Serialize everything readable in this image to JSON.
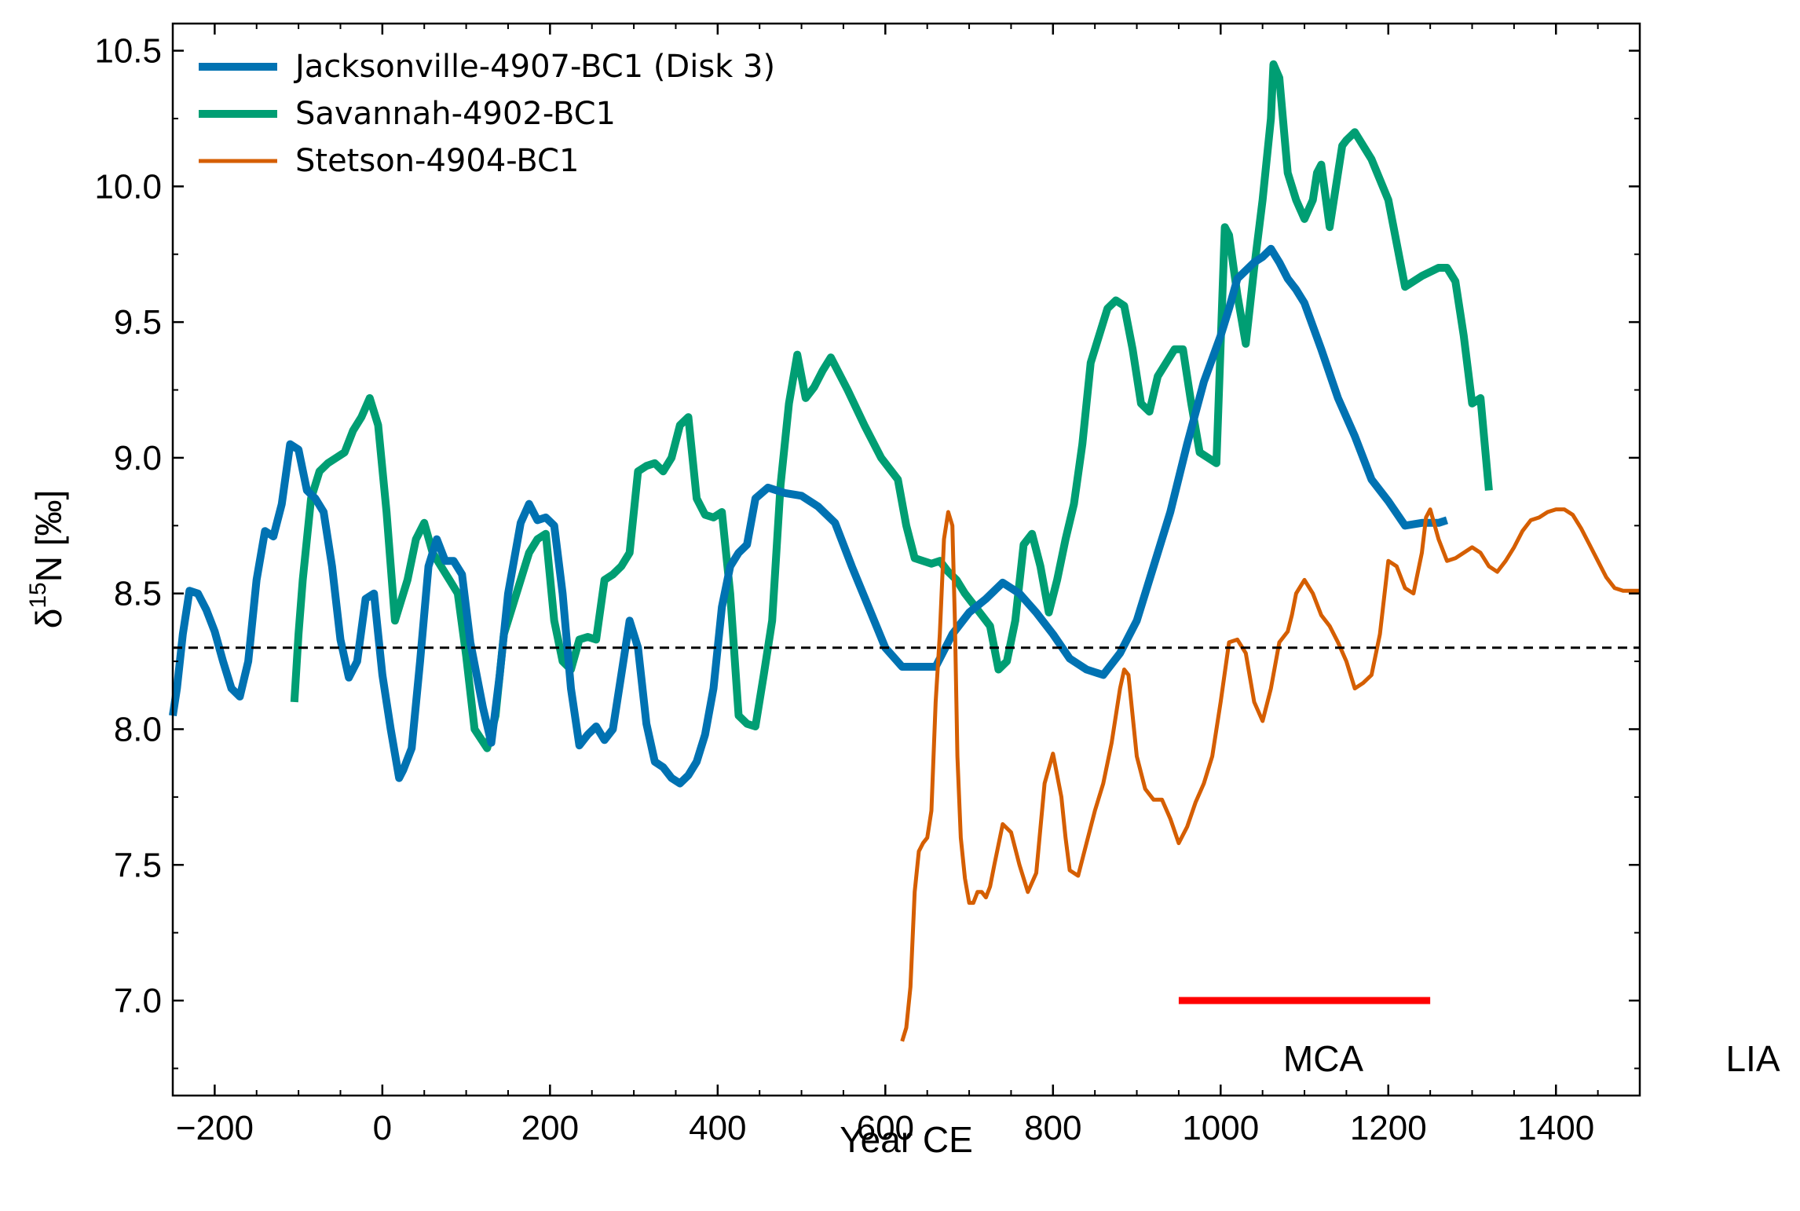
{
  "chart_data": {
    "type": "line",
    "title": "",
    "xlabel": "Year CE",
    "ylabel_main": "δ",
    "ylabel_sup": "15",
    "ylabel_tail": "N [‰]",
    "xlim": [
      -250,
      1500
    ],
    "ylim": [
      6.65,
      10.6
    ],
    "x_ticks": [
      -200,
      0,
      200,
      400,
      600,
      800,
      1000,
      1200,
      1400
    ],
    "x_tick_labels": [
      "−200",
      "0",
      "200",
      "400",
      "600",
      "800",
      "1000",
      "1200",
      "1400"
    ],
    "y_ticks": [
      7.0,
      7.5,
      8.0,
      8.5,
      9.0,
      9.5,
      10.0,
      10.5
    ],
    "y_tick_labels": [
      "7.0",
      "7.5",
      "8.0",
      "8.5",
      "9.0",
      "9.5",
      "10.0",
      "10.5"
    ],
    "grid": false,
    "legend_position": "top-left",
    "reference_line": {
      "y": 8.3,
      "style": "dashed",
      "color": "#000000"
    },
    "series": [
      {
        "name": "Jacksonville-4907-BC1 (Disk 3)",
        "color": "#0072b2",
        "x": [
          -250,
          -245,
          -238,
          -230,
          -220,
          -210,
          -200,
          -190,
          -180,
          -170,
          -160,
          -150,
          -140,
          -130,
          -120,
          -110,
          -100,
          -90,
          -80,
          -70,
          -60,
          -50,
          -40,
          -30,
          -20,
          -10,
          0,
          10,
          20,
          25,
          35,
          45,
          55,
          65,
          75,
          85,
          95,
          105,
          120,
          130,
          140,
          150,
          165,
          175,
          185,
          195,
          205,
          215,
          225,
          235,
          245,
          255,
          265,
          275,
          285,
          295,
          305,
          315,
          325,
          335,
          345,
          355,
          365,
          375,
          385,
          395,
          405,
          415,
          425,
          435,
          445,
          460,
          480,
          500,
          520,
          540,
          560,
          580,
          600,
          620,
          640,
          660,
          680,
          700,
          720,
          740,
          760,
          780,
          800,
          820,
          840,
          860,
          880,
          900,
          920,
          940,
          960,
          980,
          1000,
          1010,
          1020,
          1030,
          1040,
          1050,
          1060,
          1070,
          1080,
          1090,
          1100,
          1120,
          1140,
          1160,
          1180,
          1200,
          1220,
          1240,
          1260,
          1270
        ],
        "values": [
          8.05,
          8.15,
          8.35,
          8.51,
          8.5,
          8.44,
          8.36,
          8.25,
          8.15,
          8.12,
          8.25,
          8.55,
          8.73,
          8.71,
          8.83,
          9.05,
          9.03,
          8.88,
          8.85,
          8.8,
          8.6,
          8.33,
          8.19,
          8.25,
          8.48,
          8.5,
          8.2,
          8.0,
          7.82,
          7.85,
          7.93,
          8.25,
          8.6,
          8.7,
          8.62,
          8.62,
          8.57,
          8.32,
          8.08,
          7.95,
          8.2,
          8.5,
          8.76,
          8.83,
          8.77,
          8.78,
          8.75,
          8.5,
          8.15,
          7.94,
          7.98,
          8.01,
          7.96,
          8.0,
          8.2,
          8.4,
          8.3,
          8.02,
          7.88,
          7.86,
          7.82,
          7.8,
          7.83,
          7.88,
          7.98,
          8.15,
          8.45,
          8.6,
          8.65,
          8.68,
          8.85,
          8.89,
          8.87,
          8.86,
          8.82,
          8.76,
          8.6,
          8.45,
          8.3,
          8.23,
          8.23,
          8.23,
          8.35,
          8.43,
          8.48,
          8.54,
          8.5,
          8.43,
          8.35,
          8.26,
          8.22,
          8.2,
          8.28,
          8.4,
          8.6,
          8.8,
          9.05,
          9.28,
          9.45,
          9.55,
          9.66,
          9.69,
          9.72,
          9.74,
          9.77,
          9.72,
          9.66,
          9.62,
          9.57,
          9.4,
          9.22,
          9.08,
          8.92,
          8.84,
          8.75,
          8.76,
          8.76,
          8.77
        ]
      },
      {
        "name": "Savannah-4902-BC1",
        "color": "#009e73",
        "x": [
          -105,
          -100,
          -95,
          -85,
          -75,
          -65,
          -55,
          -45,
          -35,
          -25,
          -15,
          -5,
          5,
          15,
          30,
          40,
          50,
          60,
          70,
          80,
          90,
          100,
          110,
          125,
          135,
          145,
          155,
          165,
          175,
          185,
          195,
          205,
          215,
          225,
          235,
          245,
          255,
          265,
          275,
          285,
          295,
          305,
          315,
          325,
          335,
          345,
          355,
          365,
          375,
          385,
          395,
          405,
          415,
          425,
          435,
          445,
          455,
          465,
          475,
          485,
          495,
          505,
          515,
          525,
          535,
          555,
          575,
          595,
          615,
          625,
          635,
          645,
          655,
          665,
          675,
          685,
          695,
          705,
          715,
          725,
          735,
          745,
          755,
          765,
          775,
          785,
          795,
          805,
          815,
          825,
          835,
          845,
          855,
          865,
          875,
          885,
          895,
          905,
          915,
          925,
          935,
          945,
          955,
          965,
          975,
          985,
          995,
          1005,
          1010,
          1020,
          1030,
          1040,
          1050,
          1060,
          1063,
          1070,
          1080,
          1090,
          1100,
          1110,
          1115,
          1120,
          1130,
          1145,
          1150,
          1160,
          1180,
          1200,
          1220,
          1240,
          1260,
          1270,
          1280,
          1290,
          1300,
          1310,
          1320
        ],
        "values": [
          8.1,
          8.35,
          8.55,
          8.85,
          8.95,
          8.98,
          9.0,
          9.02,
          9.1,
          9.15,
          9.22,
          9.12,
          8.8,
          8.4,
          8.55,
          8.7,
          8.76,
          8.65,
          8.6,
          8.55,
          8.5,
          8.27,
          8.0,
          7.93,
          8.05,
          8.35,
          8.45,
          8.55,
          8.65,
          8.7,
          8.72,
          8.4,
          8.25,
          8.22,
          8.33,
          8.34,
          8.33,
          8.55,
          8.57,
          8.6,
          8.65,
          8.95,
          8.97,
          8.98,
          8.95,
          9.0,
          9.12,
          9.15,
          8.85,
          8.79,
          8.78,
          8.8,
          8.5,
          8.05,
          8.02,
          8.01,
          8.2,
          8.4,
          8.9,
          9.2,
          9.38,
          9.22,
          9.26,
          9.32,
          9.37,
          9.25,
          9.12,
          9.0,
          8.92,
          8.75,
          8.63,
          8.62,
          8.61,
          8.62,
          8.58,
          8.55,
          8.5,
          8.46,
          8.42,
          8.38,
          8.22,
          8.25,
          8.4,
          8.68,
          8.72,
          8.6,
          8.43,
          8.55,
          8.7,
          8.83,
          9.05,
          9.35,
          9.45,
          9.55,
          9.58,
          9.56,
          9.4,
          9.2,
          9.17,
          9.3,
          9.35,
          9.4,
          9.4,
          9.2,
          9.02,
          9.0,
          8.98,
          9.85,
          9.82,
          9.6,
          9.42,
          9.7,
          9.95,
          10.25,
          10.45,
          10.4,
          10.05,
          9.95,
          9.88,
          9.95,
          10.05,
          10.08,
          9.85,
          10.15,
          10.17,
          10.2,
          10.1,
          9.95,
          9.63,
          9.67,
          9.7,
          9.7,
          9.65,
          9.45,
          9.2,
          9.22,
          8.88
        ]
      },
      {
        "name": "Stetson-4904-BC1",
        "color": "#d55e00",
        "x": [
          620,
          625,
          630,
          635,
          640,
          645,
          650,
          655,
          660,
          665,
          670,
          675,
          680,
          683,
          686,
          690,
          695,
          700,
          705,
          710,
          715,
          720,
          725,
          730,
          740,
          750,
          760,
          770,
          780,
          790,
          800,
          810,
          815,
          820,
          830,
          840,
          850,
          860,
          870,
          880,
          885,
          890,
          900,
          910,
          920,
          930,
          940,
          950,
          960,
          970,
          980,
          990,
          1000,
          1010,
          1020,
          1030,
          1040,
          1050,
          1060,
          1070,
          1080,
          1085,
          1090,
          1100,
          1110,
          1120,
          1130,
          1140,
          1150,
          1160,
          1170,
          1180,
          1190,
          1200,
          1210,
          1220,
          1230,
          1240,
          1245,
          1250,
          1260,
          1270,
          1280,
          1290,
          1300,
          1310,
          1320,
          1330,
          1340,
          1350,
          1360,
          1370,
          1380,
          1390,
          1400,
          1410,
          1420,
          1430,
          1440,
          1450,
          1460,
          1470,
          1480,
          1490,
          1500
        ],
        "values": [
          6.85,
          6.9,
          7.05,
          7.4,
          7.55,
          7.58,
          7.6,
          7.7,
          8.1,
          8.35,
          8.7,
          8.8,
          8.75,
          8.4,
          7.9,
          7.6,
          7.45,
          7.36,
          7.36,
          7.4,
          7.4,
          7.38,
          7.42,
          7.5,
          7.65,
          7.62,
          7.5,
          7.4,
          7.47,
          7.8,
          7.91,
          7.75,
          7.6,
          7.48,
          7.46,
          7.58,
          7.7,
          7.8,
          7.95,
          8.15,
          8.22,
          8.2,
          7.9,
          7.78,
          7.74,
          7.74,
          7.67,
          7.58,
          7.64,
          7.73,
          7.8,
          7.9,
          8.1,
          8.32,
          8.33,
          8.28,
          8.1,
          8.03,
          8.15,
          8.32,
          8.36,
          8.42,
          8.5,
          8.55,
          8.5,
          8.42,
          8.38,
          8.32,
          8.25,
          8.15,
          8.17,
          8.2,
          8.35,
          8.62,
          8.6,
          8.52,
          8.5,
          8.65,
          8.78,
          8.81,
          8.7,
          8.62,
          8.63,
          8.65,
          8.67,
          8.65,
          8.6,
          8.58,
          8.62,
          8.67,
          8.73,
          8.77,
          8.78,
          8.8,
          8.81,
          8.81,
          8.79,
          8.74,
          8.68,
          8.62,
          8.56,
          8.52,
          8.51,
          8.51,
          8.51
        ]
      }
    ],
    "annotations": [
      {
        "label": "MCA",
        "x_start": 950,
        "x_end": 1250,
        "y": 7.0,
        "color": "#ff0000"
      },
      {
        "label": "LIA"
      }
    ]
  }
}
